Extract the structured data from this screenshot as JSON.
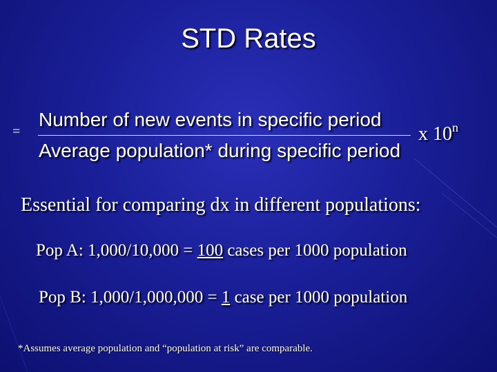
{
  "slide": {
    "title": "STD Rates",
    "formula": {
      "equals": "=",
      "numerator": "Number of new events in specific period",
      "denominator": "Average population* during specific period",
      "multiplier": "x 10",
      "exponent": "n"
    },
    "essential_text": "Essential for comparing dx in different populations:",
    "pop_a": {
      "prefix": "Pop A:  1,000/10,000  = ",
      "value": "100",
      "suffix": " cases per 1000 population"
    },
    "pop_b": {
      "prefix": "Pop B:  1,000/1,000,000  = ",
      "value": "1",
      "suffix": " case per 1000 population"
    },
    "footnote": "*Assumes average population and “population at risk” are comparable."
  },
  "colors": {
    "background": "#1a1f98",
    "text": "#ffffff"
  }
}
